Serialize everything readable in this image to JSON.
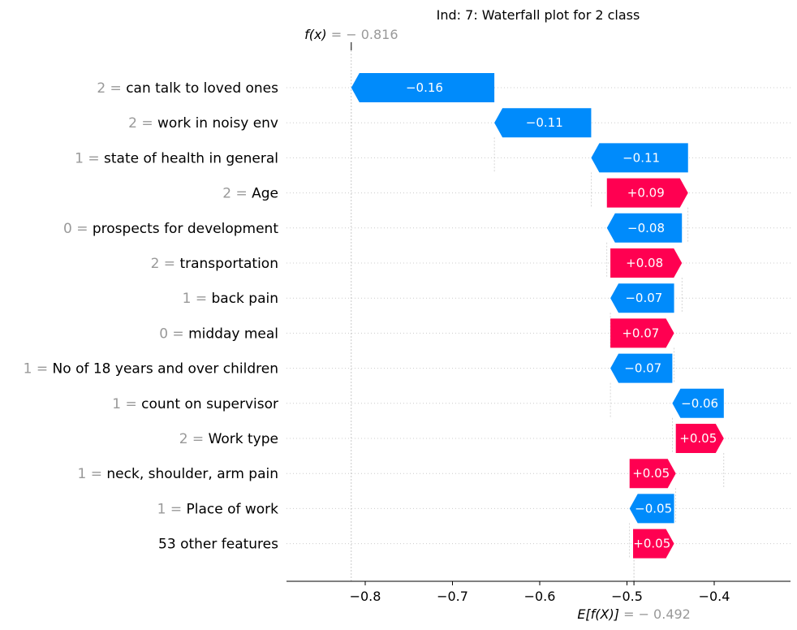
{
  "chart_data": {
    "type": "waterfall",
    "title": "Ind: 7: Waterfall plot for 2 class",
    "fx": {
      "label": "f(x)",
      "value": -0.816,
      "display": " = − 0.816"
    },
    "base": {
      "label": "E[f(X)]",
      "value": -0.492,
      "display": " = − 0.492"
    },
    "xlim": [
      -0.89,
      -0.36
    ],
    "xticks": [
      -0.8,
      -0.7,
      -0.6,
      -0.5,
      -0.4
    ],
    "xtick_labels": [
      "−0.8",
      "−0.7",
      "−0.6",
      "−0.5",
      "−0.4"
    ],
    "grid": true,
    "colors": {
      "positive": "#ff0051",
      "negative": "#008bfb",
      "feature_value": "#999999"
    },
    "features": [
      {
        "value": "2 =",
        "name": "can talk to loved ones",
        "start": -0.652,
        "end": -0.816,
        "label": "−0.16"
      },
      {
        "value": "2 =",
        "name": "work in noisy env",
        "start": -0.541,
        "end": -0.652,
        "label": "−0.11"
      },
      {
        "value": "1 =",
        "name": "state of health in general",
        "start": -0.43,
        "end": -0.541,
        "label": "−0.11"
      },
      {
        "value": "2 =",
        "name": "Age",
        "start": -0.523,
        "end": -0.43,
        "label": "+0.09"
      },
      {
        "value": "0 =",
        "name": "prospects for development",
        "start": -0.437,
        "end": -0.523,
        "label": "−0.08"
      },
      {
        "value": "2 =",
        "name": "transportation",
        "start": -0.519,
        "end": -0.437,
        "label": "+0.08"
      },
      {
        "value": "1 =",
        "name": "back pain",
        "start": -0.446,
        "end": -0.519,
        "label": "−0.07"
      },
      {
        "value": "0 =",
        "name": "midday meal",
        "start": -0.519,
        "end": -0.446,
        "label": "+0.07"
      },
      {
        "value": "1 =",
        "name": "No of 18 years and over children",
        "start": -0.448,
        "end": -0.519,
        "label": "−0.07"
      },
      {
        "value": "1 =",
        "name": "count on supervisor",
        "start": -0.389,
        "end": -0.448,
        "label": "−0.06"
      },
      {
        "value": "2 =",
        "name": "Work type",
        "start": -0.444,
        "end": -0.389,
        "label": "+0.05"
      },
      {
        "value": "1 =",
        "name": "neck, shoulder, arm pain",
        "start": -0.497,
        "end": -0.444,
        "label": "+0.05"
      },
      {
        "value": "1 =",
        "name": "Place of work",
        "start": -0.446,
        "end": -0.497,
        "label": "−0.05"
      },
      {
        "value": "",
        "name": "53 other features",
        "start": -0.493,
        "end": -0.446,
        "label": "+0.05"
      }
    ]
  }
}
